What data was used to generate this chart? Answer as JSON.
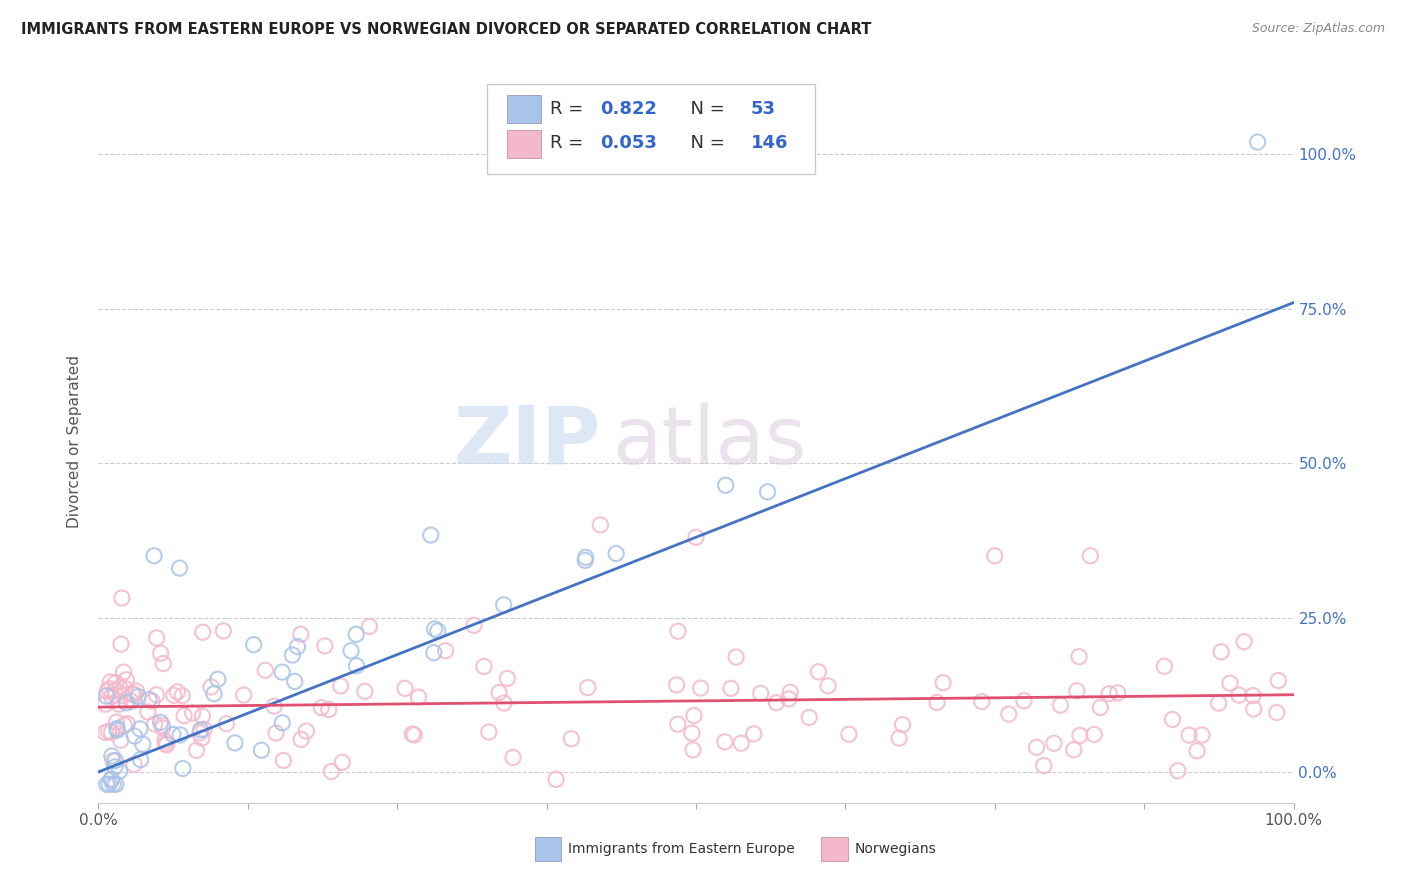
{
  "title": "IMMIGRANTS FROM EASTERN EUROPE VS NORWEGIAN DIVORCED OR SEPARATED CORRELATION CHART",
  "source": "Source: ZipAtlas.com",
  "ylabel": "Divorced or Separated",
  "r_blue": 0.822,
  "n_blue": 53,
  "r_pink": 0.053,
  "n_pink": 146,
  "blue_scatter_color": "#a8c4e8",
  "blue_line_color": "#4472c4",
  "pink_scatter_color": "#f4b8cc",
  "pink_line_color": "#e05070",
  "legend_blue_label": "Immigrants from Eastern Europe",
  "legend_pink_label": "Norwegians",
  "watermark_zip": "ZIP",
  "watermark_atlas": "atlas",
  "xlim": [
    0,
    1
  ],
  "ylim": [
    -0.05,
    1.12
  ],
  "yticks": [
    0.0,
    0.25,
    0.5,
    0.75,
    1.0
  ],
  "ytick_labels": [
    "0.0%",
    "25.0%",
    "50.0%",
    "75.0%",
    "100.0%"
  ],
  "xtick_positions": [
    0.0,
    0.125,
    0.25,
    0.375,
    0.5,
    0.625,
    0.75,
    0.875,
    1.0
  ],
  "xtick_labels": [
    "0.0%",
    "",
    "",
    "",
    "",
    "",
    "",
    "",
    "100.0%"
  ],
  "blue_line_x": [
    0.0,
    1.0
  ],
  "blue_line_y": [
    0.0,
    0.76
  ],
  "pink_line_x": [
    0.0,
    1.0
  ],
  "pink_line_y": [
    0.105,
    0.125
  ],
  "value_color": "#3366cc",
  "label_color": "#333333"
}
